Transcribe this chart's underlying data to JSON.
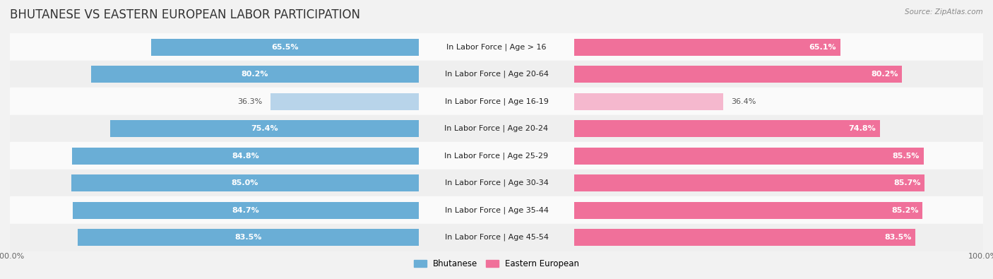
{
  "title": "BHUTANESE VS EASTERN EUROPEAN LABOR PARTICIPATION",
  "source": "Source: ZipAtlas.com",
  "categories": [
    "In Labor Force | Age > 16",
    "In Labor Force | Age 20-64",
    "In Labor Force | Age 16-19",
    "In Labor Force | Age 20-24",
    "In Labor Force | Age 25-29",
    "In Labor Force | Age 30-34",
    "In Labor Force | Age 35-44",
    "In Labor Force | Age 45-54"
  ],
  "bhutanese": [
    65.5,
    80.2,
    36.3,
    75.4,
    84.8,
    85.0,
    84.7,
    83.5
  ],
  "eastern_european": [
    65.1,
    80.2,
    36.4,
    74.8,
    85.5,
    85.7,
    85.2,
    83.5
  ],
  "bhutanese_color": "#6aaed6",
  "bhutanese_light_color": "#b8d4ea",
  "eastern_european_color": "#f0709a",
  "eastern_european_light_color": "#f5b8ce",
  "background_color": "#f2f2f2",
  "row_bg_light": "#fafafa",
  "row_bg_dark": "#efefef",
  "separator_color": "#d8d8d8",
  "center_bg": "#ffffff",
  "title_color": "#333333",
  "source_color": "#888888",
  "value_color_white": "#ffffff",
  "value_color_dark": "#555555",
  "tick_color": "#666666",
  "legend_blue": "#6aaed6",
  "legend_pink": "#f0709a",
  "title_fontsize": 12,
  "label_fontsize": 8,
  "value_fontsize": 8,
  "tick_fontsize": 8,
  "max_value": 100.0,
  "bar_height": 0.62,
  "low_threshold": 50
}
